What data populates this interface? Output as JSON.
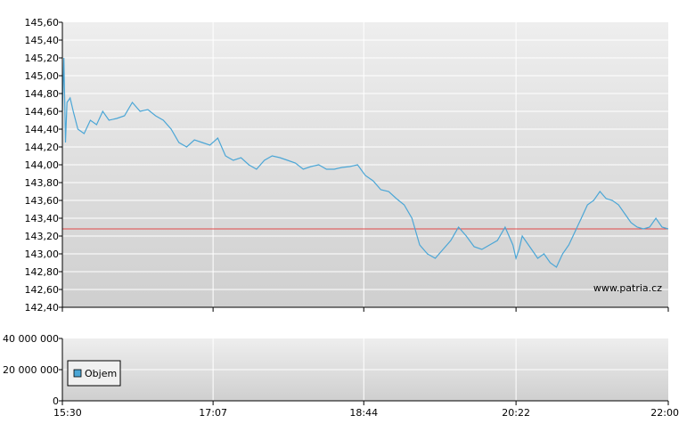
{
  "chart_data": [
    {
      "type": "line",
      "panel": "price",
      "x_ticks": [
        "15:30",
        "17:07",
        "18:44",
        "20:22",
        "22:00"
      ],
      "y_ticks": [
        "145,60",
        "145,40",
        "145,20",
        "145,00",
        "144,80",
        "144,60",
        "144,40",
        "144,20",
        "144,00",
        "143,80",
        "143,60",
        "143,40",
        "143,20",
        "143,00",
        "142,80",
        "142,60",
        "142,40"
      ],
      "ylim": [
        142.4,
        145.6
      ],
      "reference_line": 143.28,
      "annotation": "www.patria.cz",
      "grid": true,
      "colors": {
        "line": "#4ba6d6",
        "reference": "#e04848"
      },
      "series": [
        {
          "x": [
            "15:30",
            "15:31",
            "15:32",
            "15:33",
            "15:35",
            "15:37",
            "15:40",
            "15:44",
            "15:48",
            "15:52",
            "15:56",
            "16:00",
            "16:05",
            "16:10",
            "16:15",
            "16:20",
            "16:25",
            "16:30",
            "16:35",
            "16:40",
            "16:45",
            "16:50",
            "16:55",
            "17:00",
            "17:05",
            "17:10",
            "17:15",
            "17:20",
            "17:25",
            "17:30",
            "17:35",
            "17:40",
            "17:45",
            "17:50",
            "17:55",
            "18:00",
            "18:05",
            "18:10",
            "18:15",
            "18:20",
            "18:25",
            "18:30",
            "18:35",
            "18:40",
            "18:45",
            "18:50",
            "18:55",
            "19:00",
            "19:05",
            "19:10",
            "19:15",
            "19:20",
            "19:25",
            "19:30",
            "19:35",
            "19:40",
            "19:45",
            "19:50",
            "19:55",
            "20:00",
            "20:05",
            "20:10",
            "20:15",
            "20:20",
            "20:22",
            "20:24",
            "20:26",
            "20:28",
            "20:32",
            "20:36",
            "20:40",
            "20:44",
            "20:48",
            "20:52",
            "20:56",
            "21:00",
            "21:04",
            "21:08",
            "21:12",
            "21:16",
            "21:20",
            "21:24",
            "21:28",
            "21:32",
            "21:36",
            "21:40",
            "21:44",
            "21:48",
            "21:52",
            "21:56",
            "22:00"
          ],
          "values": [
            144.6,
            145.2,
            144.25,
            144.7,
            144.75,
            144.6,
            144.4,
            144.35,
            144.5,
            144.45,
            144.6,
            144.5,
            144.52,
            144.55,
            144.7,
            144.6,
            144.62,
            144.55,
            144.5,
            144.4,
            144.25,
            144.2,
            144.28,
            144.25,
            144.22,
            144.3,
            144.1,
            144.05,
            144.08,
            144.0,
            143.95,
            144.05,
            144.1,
            144.08,
            144.05,
            144.02,
            143.95,
            143.98,
            144.0,
            143.95,
            143.95,
            143.97,
            143.98,
            144.0,
            143.88,
            143.82,
            143.72,
            143.7,
            143.62,
            143.55,
            143.4,
            143.1,
            143.0,
            142.95,
            143.05,
            143.15,
            143.3,
            143.2,
            143.08,
            143.05,
            143.1,
            143.15,
            143.3,
            143.1,
            142.95,
            143.05,
            143.2,
            143.15,
            143.05,
            142.95,
            143.0,
            142.9,
            142.85,
            143.0,
            143.1,
            143.25,
            143.4,
            143.55,
            143.6,
            143.7,
            143.62,
            143.6,
            143.55,
            143.45,
            143.35,
            143.3,
            143.28,
            143.3,
            143.4,
            143.3,
            143.28
          ]
        }
      ]
    },
    {
      "type": "bar",
      "panel": "volume",
      "x_ticks": [
        "15:30",
        "17:07",
        "18:44",
        "20:22",
        "22:00"
      ],
      "y_ticks": [
        "40 000 000",
        "20 000 000",
        "0"
      ],
      "ylim": [
        0,
        40000000
      ],
      "legend": "Objem",
      "legend_position": "bottom-left",
      "grid": true,
      "colors": {
        "legend_swatch": "#4ba6d6"
      },
      "series": [
        {
          "name": "Objem",
          "values": []
        }
      ]
    }
  ]
}
